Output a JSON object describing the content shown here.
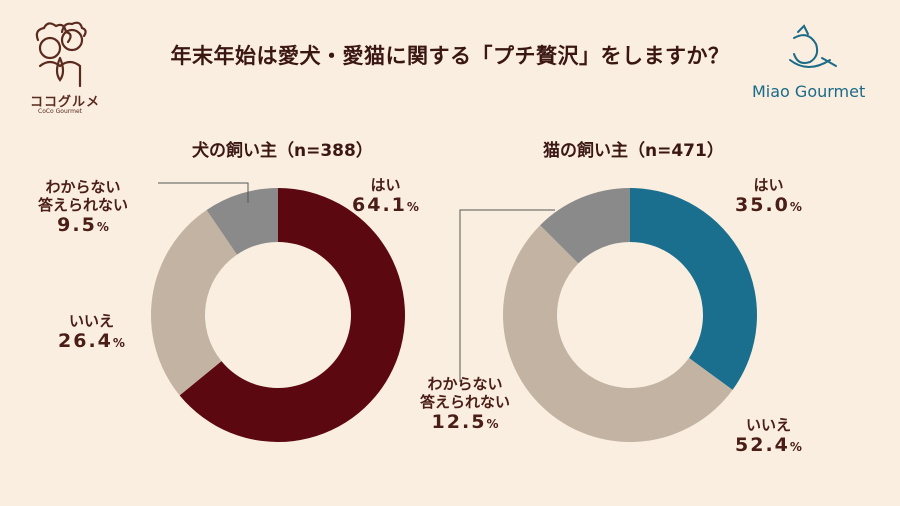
{
  "title": "年末年始は愛犬・愛猫に関する「プチ贅沢」をしますか？",
  "logos": {
    "left_text": "ココグルメ",
    "left_sub": "CoCo Gourmet",
    "right_text": "Miao Gourmet"
  },
  "colors": {
    "background": "#f9eee0",
    "dog_yes": "#5b0810",
    "cat_yes": "#1b6f8e",
    "no": "#c3b3a3",
    "unknown": "#8a8a8a"
  },
  "chart_data": [
    {
      "type": "pie",
      "title": "犬の飼い主（n=388）",
      "donut": true,
      "slices": [
        {
          "label": "はい",
          "value": 64.1,
          "display": "64.1",
          "color": "#5b0810"
        },
        {
          "label": "いいえ",
          "value": 26.4,
          "display": "26.4",
          "color": "#c3b3a3"
        },
        {
          "label": "わからない\n答えられない",
          "label_line1": "わからない",
          "label_line2": "答えられない",
          "value": 9.5,
          "display": "9.5",
          "color": "#8a8a8a"
        }
      ]
    },
    {
      "type": "pie",
      "title": "猫の飼い主（n=471）",
      "donut": true,
      "slices": [
        {
          "label": "はい",
          "value": 35.0,
          "display": "35.0",
          "color": "#1b6f8e"
        },
        {
          "label": "いいえ",
          "value": 52.4,
          "display": "52.4",
          "color": "#c3b3a3"
        },
        {
          "label": "わからない\n答えられない",
          "label_line1": "わからない",
          "label_line2": "答えられない",
          "value": 12.5,
          "display": "12.5",
          "color": "#8a8a8a"
        }
      ]
    }
  ],
  "percent_sign": "%"
}
